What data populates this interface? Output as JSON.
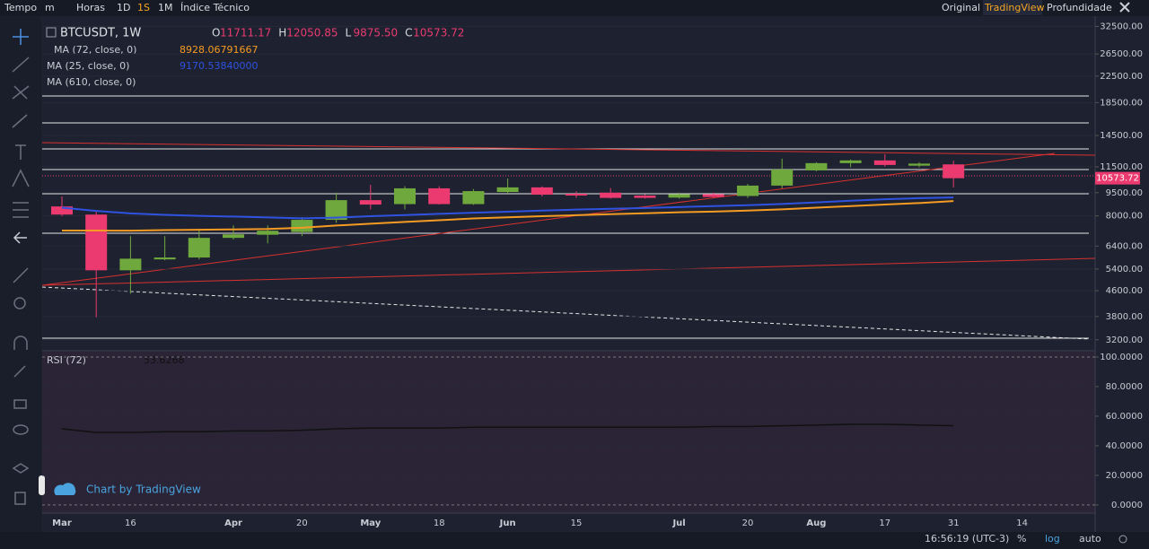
{
  "toolbar": {
    "left": [
      "Tempo",
      "m",
      "Horas",
      "1D",
      "1S",
      "1M",
      "Índice Técnico"
    ],
    "right": [
      "Original",
      "TradingView",
      "Profundidade"
    ]
  },
  "watermark": "Chart by TradingView",
  "status_bar": {
    "time": "16:56:19 (UTC-3)",
    "items": [
      "%",
      "log",
      "auto"
    ]
  },
  "chart_data": [
    {
      "type": "candlestick",
      "title": "BTCUSDT, 1W",
      "legend_ohlc": [
        [
          "O",
          "11711.17"
        ],
        [
          "H",
          "12050.85"
        ],
        [
          "L",
          "9875.50"
        ],
        [
          "C",
          "10573.72"
        ]
      ],
      "categories": [
        "Mar",
        null,
        "16",
        null,
        null,
        "Apr",
        null,
        "20",
        null,
        "May",
        null,
        "18",
        null,
        "Jun",
        null,
        "15",
        null,
        null,
        "Jul",
        null,
        "20",
        null,
        "Aug",
        null,
        "17",
        null,
        "31",
        null,
        "14"
      ],
      "open": [
        8580,
        8080,
        5350,
        5800,
        5880,
        6800,
        6960,
        7100,
        7770,
        8990,
        8730,
        9810,
        8730,
        9550,
        9880,
        9420,
        9500,
        9300,
        9160,
        9390,
        9270,
        10010,
        11200,
        11820,
        12060,
        11600,
        11711.17,
        null,
        null
      ],
      "high": [
        9240,
        8300,
        6890,
        6890,
        7220,
        7460,
        7460,
        7930,
        9500,
        10070,
        9960,
        9960,
        9760,
        10550,
        9960,
        9600,
        9830,
        9390,
        9500,
        9500,
        10140,
        12220,
        11900,
        12140,
        12630,
        11900,
        12050.85,
        null,
        null
      ],
      "low": [
        7990,
        3780,
        4500,
        5760,
        5800,
        6720,
        6530,
        6890,
        7600,
        8400,
        8400,
        8700,
        8680,
        9430,
        9240,
        9150,
        9090,
        9090,
        9090,
        9140,
        9140,
        9810,
        11130,
        11460,
        11530,
        11460,
        9875.5,
        null,
        null
      ],
      "close": [
        8080,
        5350,
        5830,
        5880,
        6800,
        6980,
        7170,
        7770,
        8990,
        8700,
        9810,
        8730,
        9610,
        9880,
        9360,
        9300,
        9140,
        9140,
        9390,
        9200,
        10010,
        11280,
        11820,
        12060,
        11660,
        11780,
        10573.72,
        null,
        null
      ],
      "up_color": "#6fa83c",
      "down_color": "#ea3a6f",
      "series": [
        {
          "name": "MA (72, close, 0)",
          "color": "#f59a23",
          "value_label": "8928.06791667",
          "values": [
            7180,
            7180,
            7170,
            7200,
            7220,
            7240,
            7260,
            7330,
            7450,
            7550,
            7650,
            7750,
            7850,
            7920,
            7980,
            8040,
            8100,
            8160,
            8220,
            8260,
            8320,
            8400,
            8500,
            8600,
            8700,
            8800,
            8928.06791667,
            null,
            null
          ]
        },
        {
          "name": "MA (25, close, 0)",
          "color": "#2f52e0",
          "value_label": "9170.53840000",
          "values": [
            8500,
            8300,
            8150,
            8060,
            8000,
            7960,
            7910,
            7860,
            7900,
            7980,
            8050,
            8120,
            8190,
            8250,
            8320,
            8380,
            8430,
            8480,
            8540,
            8600,
            8660,
            8740,
            8840,
            8950,
            9050,
            9120,
            9170.5384,
            null,
            null
          ]
        }
      ],
      "indicators": [
        "MA (610, close, 0)"
      ],
      "price_label": "10573.72",
      "log": true,
      "grid": true,
      "ylim": [
        2970,
        34600
      ],
      "yticks": [
        {
          "value": 3200,
          "label": "3200.00"
        },
        {
          "value": 3800,
          "label": "3800.00"
        },
        {
          "value": 4600,
          "label": "4600.00"
        },
        {
          "value": 5400,
          "label": "5400.00"
        },
        {
          "value": 6400,
          "label": "6400.00"
        },
        {
          "value": 8000,
          "label": "8000.00"
        },
        {
          "value": 9500,
          "label": "9500.00"
        },
        {
          "value": 11500,
          "label": "11500.00"
        },
        {
          "value": 14500,
          "label": "14500.00"
        },
        {
          "value": 18500,
          "label": "18500.00"
        },
        {
          "value": 22500,
          "label": "22500.00"
        },
        {
          "value": 26500,
          "label": "26500.00"
        },
        {
          "value": 32500,
          "label": "32500.00"
        }
      ]
    },
    {
      "type": "line",
      "title": "RSI (72)",
      "value_label": "53.6268",
      "color": "#111111",
      "values": [
        51.5,
        49,
        49,
        49.5,
        49.5,
        50,
        50,
        50.5,
        51.5,
        52,
        52,
        52,
        52.5,
        52.5,
        52.5,
        52.5,
        52.5,
        52.5,
        52.5,
        53,
        53,
        53.5,
        54,
        54.5,
        54.5,
        54,
        53.6268,
        null,
        null
      ],
      "ylim": [
        -5.5,
        103.6
      ],
      "yticks": [
        {
          "value": 0,
          "label": "0.0000"
        },
        {
          "value": 20,
          "label": "20.0000"
        },
        {
          "value": 40,
          "label": "40.0000"
        },
        {
          "value": 60,
          "label": "60.0000"
        },
        {
          "value": 80,
          "label": "80.0000"
        },
        {
          "value": 100,
          "label": "100.0000"
        }
      ]
    }
  ]
}
